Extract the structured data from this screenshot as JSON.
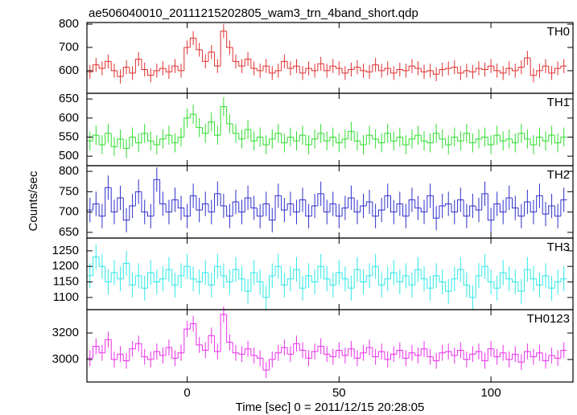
{
  "chart_data": {
    "type": "line",
    "title": "ae506040010_20111215202805_wam3_trn_4band_short.qdp",
    "xlabel": "Time [sec] 0 = 2011/12/15 20:28:05",
    "ylabel": "Counts/sec",
    "xlim": [
      -33,
      127
    ],
    "xticks": [
      0,
      50,
      100
    ],
    "x": [
      -32,
      -30,
      -28,
      -26,
      -24,
      -22,
      -20,
      -18,
      -16,
      -14,
      -12,
      -10,
      -8,
      -6,
      -4,
      -2,
      0,
      2,
      4,
      6,
      8,
      10,
      12,
      14,
      16,
      18,
      20,
      22,
      24,
      26,
      28,
      30,
      32,
      34,
      36,
      38,
      40,
      42,
      44,
      46,
      48,
      50,
      52,
      54,
      56,
      58,
      60,
      62,
      64,
      66,
      68,
      70,
      72,
      74,
      76,
      78,
      80,
      82,
      84,
      86,
      88,
      90,
      92,
      94,
      96,
      98,
      100,
      102,
      104,
      106,
      108,
      110,
      112,
      114,
      116,
      118,
      120,
      122,
      124
    ],
    "panels": [
      {
        "name": "TH0",
        "color": "#e03030",
        "error": 30,
        "ylim": [
          503,
          807
        ],
        "yticks": [
          600,
          700,
          800
        ],
        "values": [
          595,
          625,
          610,
          640,
          600,
          575,
          615,
          590,
          650,
          605,
          580,
          600,
          610,
          595,
          620,
          600,
          700,
          740,
          690,
          640,
          680,
          620,
          770,
          700,
          640,
          620,
          650,
          610,
          600,
          620,
          590,
          600,
          640,
          610,
          620,
          590,
          610,
          600,
          630,
          600,
          620,
          610,
          590,
          605,
          615,
          600,
          595,
          625,
          600,
          610,
          590,
          605,
          600,
          620,
          610,
          595,
          600,
          585,
          605,
          610,
          615,
          590,
          600,
          595,
          610,
          605,
          620,
          600,
          590,
          610,
          600,
          615,
          655,
          580,
          600,
          620,
          590,
          610,
          620
        ]
      },
      {
        "name": "TH1",
        "color": "#30dd30",
        "error": 25,
        "ylim": [
          475,
          665
        ],
        "yticks": [
          500,
          550,
          600,
          650
        ],
        "values": [
          540,
          555,
          530,
          560,
          525,
          545,
          520,
          550,
          535,
          560,
          540,
          530,
          545,
          555,
          535,
          550,
          600,
          610,
          575,
          560,
          590,
          555,
          630,
          585,
          560,
          545,
          570,
          540,
          550,
          530,
          545,
          560,
          535,
          550,
          540,
          555,
          530,
          545,
          560,
          540,
          550,
          535,
          545,
          565,
          540,
          530,
          555,
          545,
          535,
          560,
          540,
          550,
          530,
          545,
          555,
          540,
          535,
          560,
          545,
          530,
          550,
          540,
          560,
          535,
          545,
          550,
          530,
          555,
          540,
          545,
          535,
          560,
          545,
          530,
          550,
          540,
          555,
          535,
          550
        ]
      },
      {
        "name": "TH2",
        "color": "#3030cc",
        "error": 30,
        "ylim": [
          636,
          814
        ],
        "yticks": [
          650,
          700,
          750,
          800
        ],
        "values": [
          705,
          720,
          690,
          760,
          700,
          735,
          680,
          715,
          750,
          700,
          690,
          780,
          720,
          700,
          730,
          710,
          690,
          740,
          705,
          720,
          700,
          745,
          715,
          690,
          725,
          700,
          735,
          710,
          690,
          720,
          680,
          740,
          705,
          720,
          700,
          730,
          690,
          715,
          745,
          700,
          720,
          690,
          710,
          735,
          700,
          715,
          725,
          690,
          705,
          740,
          700,
          720,
          690,
          730,
          710,
          700,
          740,
          685,
          715,
          720,
          700,
          730,
          690,
          715,
          705,
          745,
          680,
          720,
          700,
          735,
          710,
          690,
          725,
          700,
          740,
          695,
          715,
          690,
          730
        ]
      },
      {
        "name": "TH3",
        "color": "#30e8e8",
        "error": 40,
        "ylim": [
          1061,
          1291
        ],
        "yticks": [
          1100,
          1150,
          1200,
          1250
        ],
        "values": [
          1170,
          1230,
          1200,
          1150,
          1180,
          1160,
          1210,
          1140,
          1170,
          1130,
          1180,
          1150,
          1160,
          1190,
          1140,
          1170,
          1200,
          1160,
          1150,
          1180,
          1140,
          1200,
          1170,
          1150,
          1190,
          1160,
          1120,
          1180,
          1150,
          1100,
          1170,
          1200,
          1140,
          1160,
          1190,
          1130,
          1170,
          1150,
          1200,
          1160,
          1140,
          1180,
          1160,
          1130,
          1190,
          1150,
          1170,
          1200,
          1140,
          1160,
          1180,
          1150,
          1170,
          1140,
          1190,
          1160,
          1130,
          1170,
          1150,
          1120,
          1160,
          1190,
          1140,
          1100,
          1170,
          1200,
          1150,
          1130,
          1180,
          1160,
          1150,
          1120,
          1190,
          1160,
          1140,
          1170,
          1130,
          1150,
          1160
        ]
      },
      {
        "name": "TH0123",
        "color": "#e830e8",
        "error": 60,
        "ylim": [
          2830,
          3376
        ],
        "yticks": [
          3000,
          3200
        ],
        "values": [
          3010,
          3100,
          3050,
          3150,
          3000,
          3040,
          2990,
          3080,
          3120,
          3020,
          3000,
          3060,
          3030,
          3090,
          3010,
          3050,
          3230,
          3270,
          3110,
          3070,
          3180,
          3060,
          3340,
          3130,
          3050,
          3040,
          3080,
          3030,
          3010,
          2920,
          3000,
          3050,
          3090,
          3040,
          3120,
          3070,
          3010,
          3060,
          3100,
          3040,
          3020,
          3070,
          3030,
          3080,
          3010,
          3050,
          3090,
          3020,
          3060,
          3000,
          3040,
          3070,
          3010,
          3050,
          3030,
          3080,
          3020,
          2990,
          3050,
          3060,
          3030,
          3070,
          3000,
          3040,
          3060,
          2990,
          3080,
          3020,
          3050,
          3000,
          3040,
          2980,
          3060,
          3020,
          3050,
          2990,
          3030,
          3010,
          3070
        ]
      }
    ]
  }
}
